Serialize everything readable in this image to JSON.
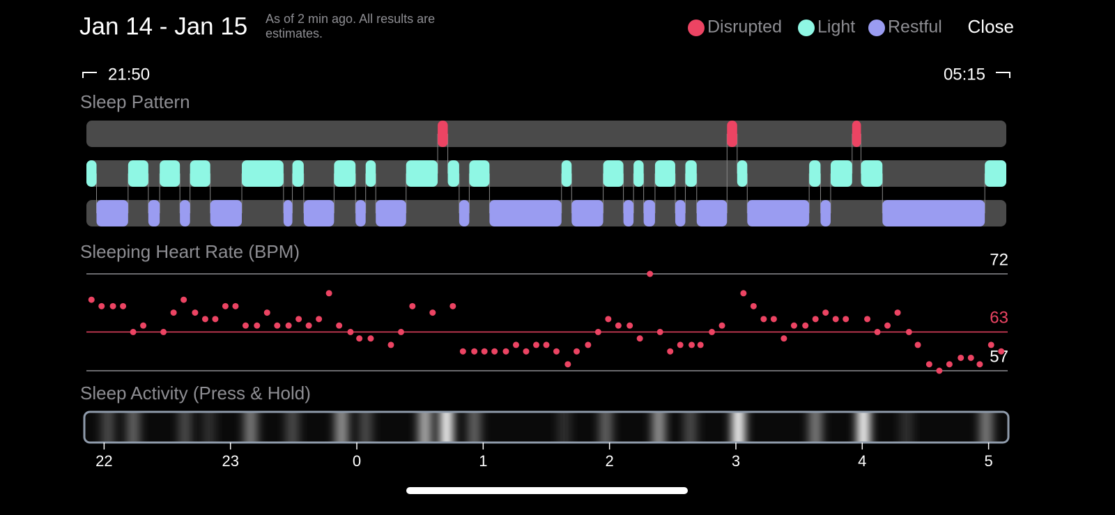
{
  "header": {
    "title": "Jan 14 - Jan 15",
    "subtitle": "As of 2 min ago. All results are estimates.",
    "close": "Close"
  },
  "time_range": {
    "start": "21:50",
    "end": "05:15"
  },
  "xlim": [
    -2.14,
    5.14
  ],
  "legend": [
    {
      "name": "Disrupted",
      "color": "#ec4463",
      "segments": [
        [
          0.64,
          0.72
        ],
        [
          2.93,
          3.01
        ],
        [
          3.92,
          3.99
        ]
      ]
    },
    {
      "name": "Light",
      "color": "#8ff7e4",
      "segments": [
        [
          -2.14,
          -2.06
        ],
        [
          -1.81,
          -1.65
        ],
        [
          -1.56,
          -1.4
        ],
        [
          -1.32,
          -1.16
        ],
        [
          -0.91,
          -0.58
        ],
        [
          -0.51,
          -0.42
        ],
        [
          -0.18,
          -0.01
        ],
        [
          0.07,
          0.15
        ],
        [
          0.39,
          0.64
        ],
        [
          0.72,
          0.81
        ],
        [
          0.89,
          1.05
        ],
        [
          1.62,
          1.7
        ],
        [
          1.95,
          2.11
        ],
        [
          2.19,
          2.27
        ],
        [
          2.36,
          2.52
        ],
        [
          2.6,
          2.69
        ],
        [
          3.01,
          3.09
        ],
        [
          3.58,
          3.67
        ],
        [
          3.75,
          3.92
        ],
        [
          3.99,
          4.16
        ],
        [
          4.97,
          5.14
        ]
      ]
    },
    {
      "name": "Restful",
      "color": "#9a9cf1",
      "segments": [
        [
          -2.06,
          -1.81
        ],
        [
          -1.65,
          -1.56
        ],
        [
          -1.4,
          -1.32
        ],
        [
          -1.16,
          -0.91
        ],
        [
          -0.58,
          -0.51
        ],
        [
          -0.42,
          -0.18
        ],
        [
          -0.01,
          0.07
        ],
        [
          0.15,
          0.39
        ],
        [
          0.81,
          0.89
        ],
        [
          1.05,
          1.62
        ],
        [
          1.7,
          1.95
        ],
        [
          2.11,
          2.19
        ],
        [
          2.27,
          2.36
        ],
        [
          2.52,
          2.6
        ],
        [
          2.69,
          2.93
        ],
        [
          3.09,
          3.58
        ],
        [
          3.67,
          3.75
        ],
        [
          4.16,
          4.97
        ]
      ]
    }
  ],
  "sleep_pattern": {
    "title": "Sleep Pattern"
  },
  "heart_rate": {
    "title": "Sleeping Heart Rate (BPM)",
    "color": "#ec4463",
    "ylim": [
      57,
      72
    ],
    "yticks": [
      57,
      72
    ],
    "average": 63,
    "x": [
      -2.1,
      -2.02,
      -1.93,
      -1.85,
      -1.77,
      -1.69,
      -1.53,
      -1.45,
      -1.37,
      -1.28,
      -1.2,
      -1.12,
      -1.04,
      -0.96,
      -0.88,
      -0.79,
      -0.71,
      -0.63,
      -0.54,
      -0.46,
      -0.38,
      -0.3,
      -0.22,
      -0.14,
      -0.05,
      0.02,
      0.11,
      0.27,
      0.35,
      0.44,
      0.6,
      0.76,
      0.84,
      0.93,
      1.01,
      1.09,
      1.18,
      1.26,
      1.34,
      1.42,
      1.5,
      1.58,
      1.67,
      1.74,
      1.83,
      1.91,
      1.99,
      2.07,
      2.16,
      2.24,
      2.32,
      2.4,
      2.48,
      2.56,
      2.65,
      2.72,
      2.81,
      2.89,
      3.06,
      3.14,
      3.22,
      3.3,
      3.38,
      3.46,
      3.55,
      3.63,
      3.71,
      3.79,
      3.87,
      4.04,
      4.12,
      4.2,
      4.28,
      4.37,
      4.44,
      4.53,
      4.61,
      4.69,
      4.78,
      4.86,
      4.93,
      5.02,
      5.1
    ],
    "values": [
      68,
      67,
      67,
      67,
      63,
      64,
      63,
      66,
      68,
      66,
      65,
      65,
      67,
      67,
      64,
      64,
      66,
      64,
      64,
      65,
      64,
      65,
      69,
      64,
      63,
      62,
      62,
      61,
      63,
      67,
      66,
      67,
      60,
      60,
      60,
      60,
      60,
      61,
      60,
      61,
      61,
      60,
      58,
      60,
      61,
      63,
      65,
      64,
      64,
      62,
      72,
      63,
      60,
      61,
      61,
      61,
      63,
      64,
      69,
      67,
      65,
      65,
      62,
      64,
      64,
      65,
      66,
      65,
      65,
      65,
      63,
      64,
      66,
      63,
      61,
      58,
      57,
      58,
      59,
      59,
      58,
      61,
      60
    ]
  },
  "activity": {
    "title": "Sleep Activity (Press & Hold)",
    "x": [
      -1.97,
      -1.77,
      -1.36,
      -1.17,
      -0.84,
      -0.51,
      -0.12,
      0.07,
      0.54,
      0.71,
      0.93,
      1.64,
      1.97,
      2.39,
      2.64,
      3.02,
      3.63,
      4.01,
      4.35,
      4.98
    ],
    "values": [
      30,
      40,
      30,
      20,
      50,
      30,
      60,
      30,
      70,
      100,
      40,
      20,
      40,
      60,
      30,
      100,
      50,
      100,
      20,
      50
    ],
    "xticks": [
      {
        "value": -2,
        "label": "22"
      },
      {
        "value": -1,
        "label": "23"
      },
      0,
      1,
      2,
      3,
      4,
      5
    ]
  }
}
